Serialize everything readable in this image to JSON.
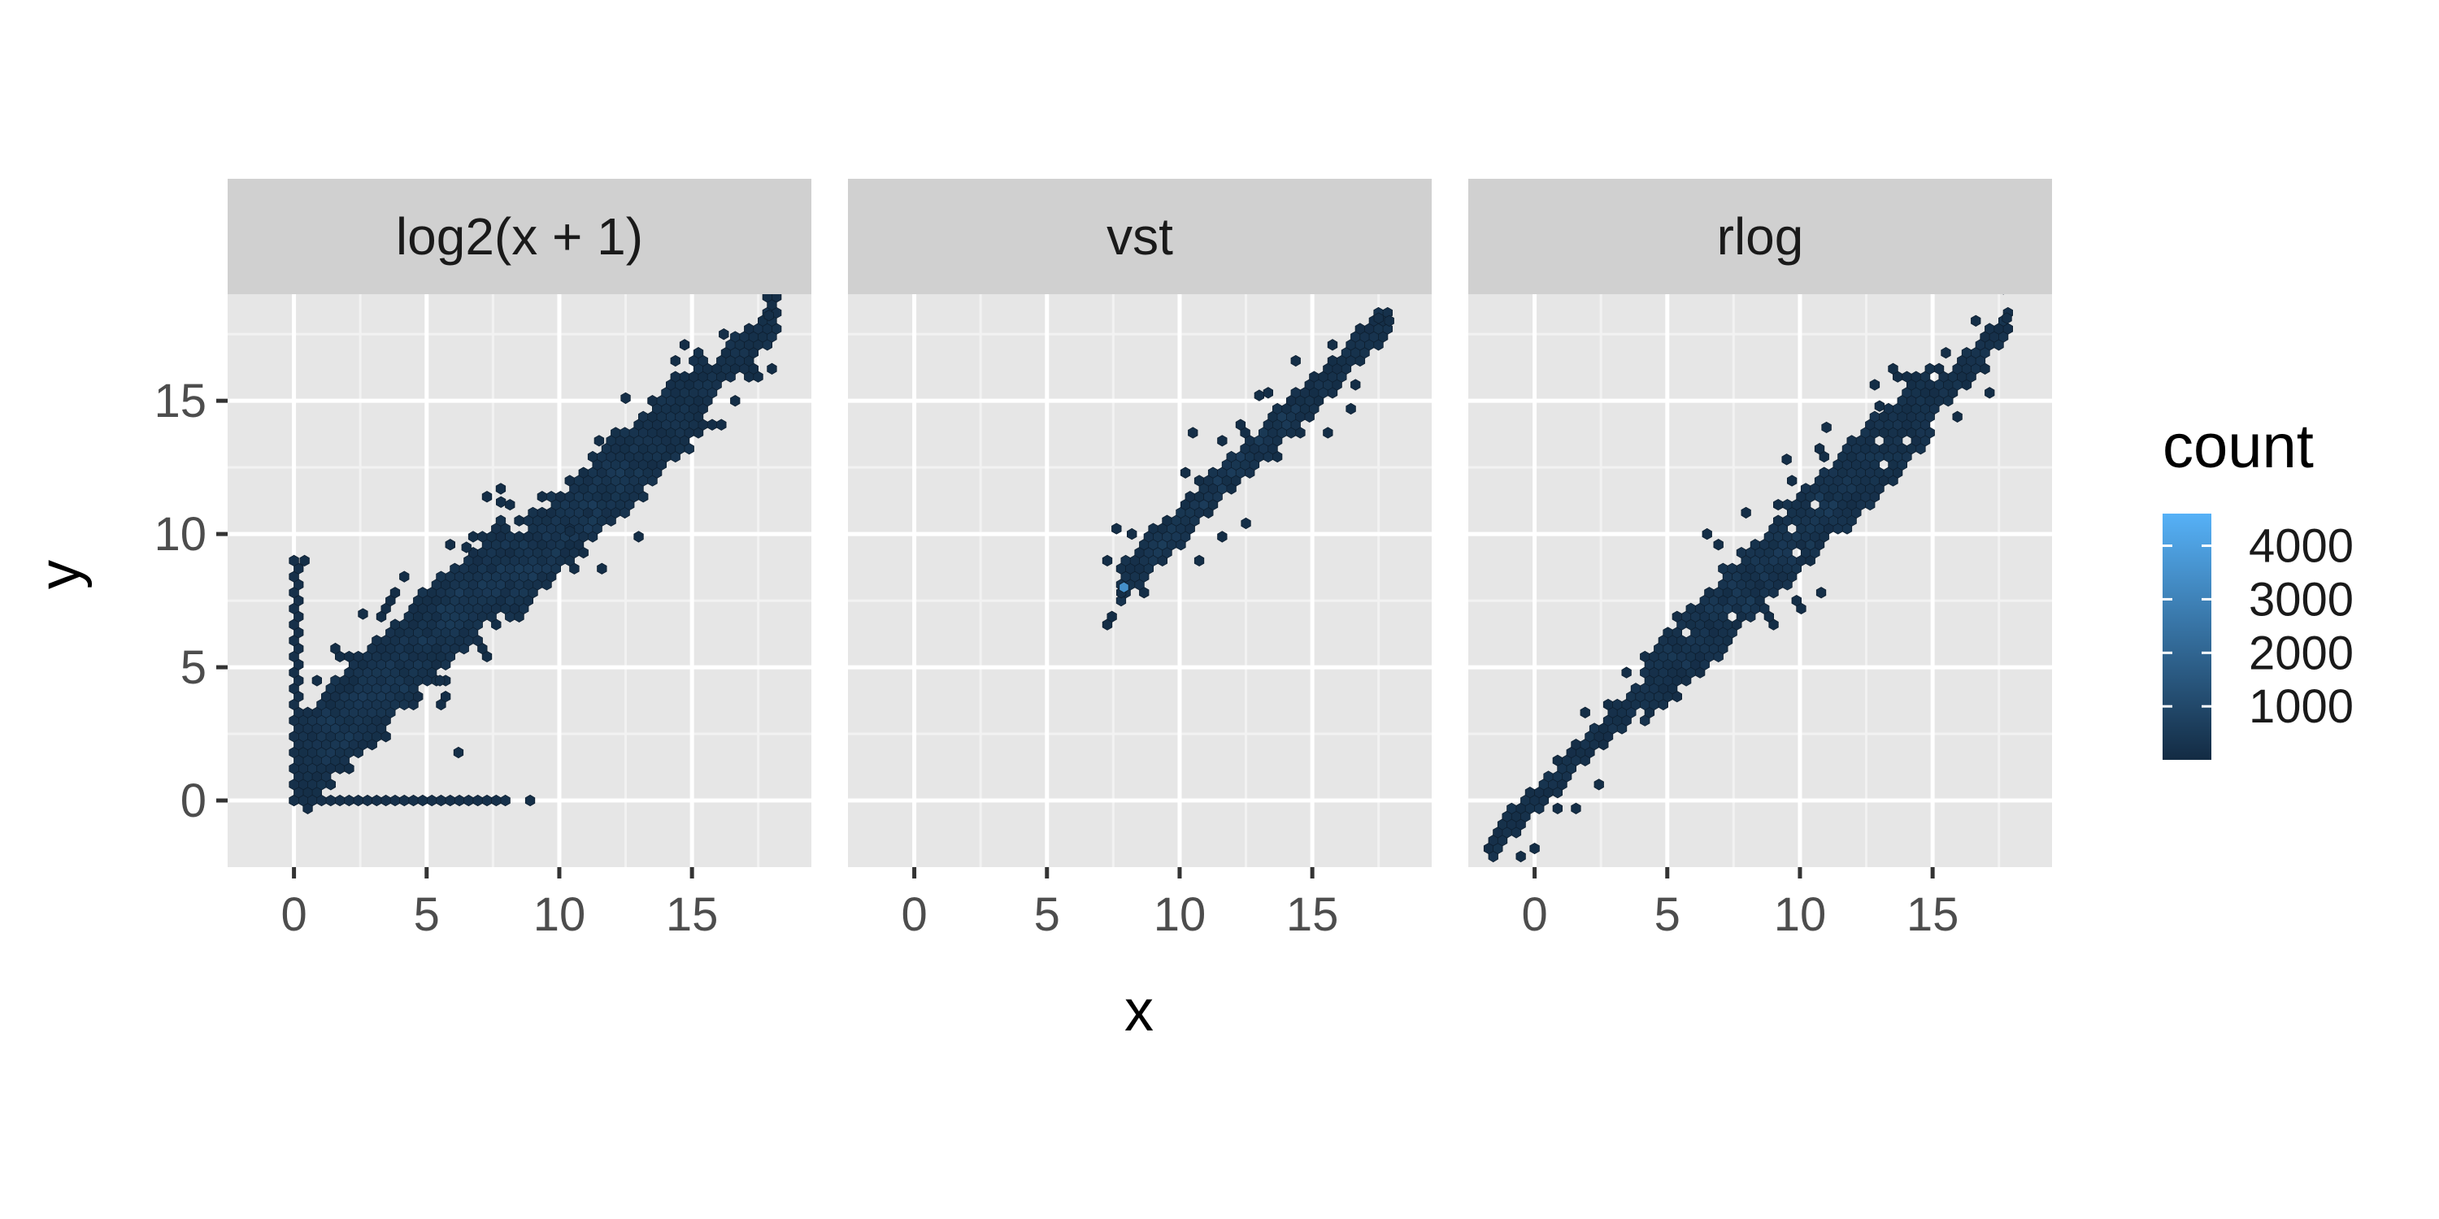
{
  "chart_data": {
    "type": "heatmap",
    "subtype": "hexbin-faceted",
    "xlabel": "x",
    "ylabel": "y",
    "xlim": [
      -2.5,
      19.5
    ],
    "ylim": [
      -2.5,
      19.0
    ],
    "x_ticks": [
      0,
      5,
      10,
      15
    ],
    "y_ticks": [
      0,
      5,
      10,
      15
    ],
    "grid": true,
    "panel_background": "#e6e6e6",
    "strip_background": "#d0d0d0",
    "facets": [
      {
        "label": "log2(x + 1)",
        "bands": [
          {
            "x0": 0.3,
            "x1": 8.0,
            "lo_a": -1.0,
            "lo_b": 1.0,
            "hi_a": 3.2,
            "hi_b": 0.95,
            "w": 0.5
          },
          {
            "x0": 8.0,
            "x1": 15.5,
            "lo_a": -1.8,
            "lo_b": 1.0,
            "hi_a": 2.2,
            "hi_b": 0.96,
            "w": 0.5
          },
          {
            "x0": 15.5,
            "x1": 18.2,
            "lo_a": -0.8,
            "lo_b": 1.0,
            "hi_a": 0.8,
            "hi_b": 1.0,
            "w": 0.5
          }
        ],
        "lines": [
          {
            "x0": 0,
            "x1": 8.0,
            "y0": 0,
            "y1": 0
          },
          {
            "x0": 0,
            "x1": 0,
            "y0": 0,
            "y1": 9.0
          }
        ],
        "points": [
          [
            8.9,
            0
          ],
          [
            0.4,
            9.0
          ],
          [
            7.8,
            11.2
          ],
          [
            6.5,
            9.5
          ],
          [
            12.5,
            15.1
          ],
          [
            11.5,
            13.5
          ],
          [
            2.6,
            7.0
          ],
          [
            5.5,
            4.5
          ],
          [
            10.4,
            10.1
          ],
          [
            6.2,
            1.8
          ],
          [
            16.2,
            17.5
          ],
          [
            17.9,
            18.2
          ]
        ],
        "dense_core": [
          1.0,
          13.0
        ]
      },
      {
        "label": "vst",
        "bands": [
          {
            "x0": 7.7,
            "x1": 18.0,
            "lo_a": -0.5,
            "lo_b": 1.0,
            "hi_a": 1.6,
            "hi_b": 0.96,
            "w": 0.5
          }
        ],
        "lines": [],
        "points": [
          [
            7.8,
            7.8
          ],
          [
            8.2,
            10.0
          ],
          [
            13.0,
            15.2
          ],
          [
            17.5,
            18.1
          ],
          [
            17.9,
            18.0
          ],
          [
            10.5,
            13.8
          ],
          [
            12.5,
            10.4
          ]
        ],
        "dense_core": [
          8.5,
          14.5
        ]
      },
      {
        "label": "rlog",
        "bands": [
          {
            "x0": -1.8,
            "x1": 18.0,
            "lo_a": -0.6,
            "lo_b": 1.0,
            "hi_a": 0.6,
            "hi_b": 1.0,
            "w": 0.5
          },
          {
            "x0": 4.0,
            "x1": 15.0,
            "lo_a": -1.6,
            "lo_b": 1.0,
            "hi_a": 1.6,
            "hi_b": 1.0,
            "w": 0.5
          }
        ],
        "lines": [],
        "points": [
          [
            9.5,
            12.8
          ],
          [
            11.0,
            14.0
          ],
          [
            10.8,
            7.8
          ],
          [
            13.0,
            14.8
          ],
          [
            17.8,
            18.1
          ],
          [
            15.5,
            16.8
          ],
          [
            6.5,
            10.0
          ]
        ],
        "dense_core": [
          5.0,
          13.0
        ]
      }
    ],
    "colorbar": {
      "title": "count",
      "ticks": [
        1000,
        2000,
        3000,
        4000
      ],
      "min": 1,
      "max": 4600,
      "low_color": "#132b43",
      "high_color": "#56b1f7"
    }
  }
}
